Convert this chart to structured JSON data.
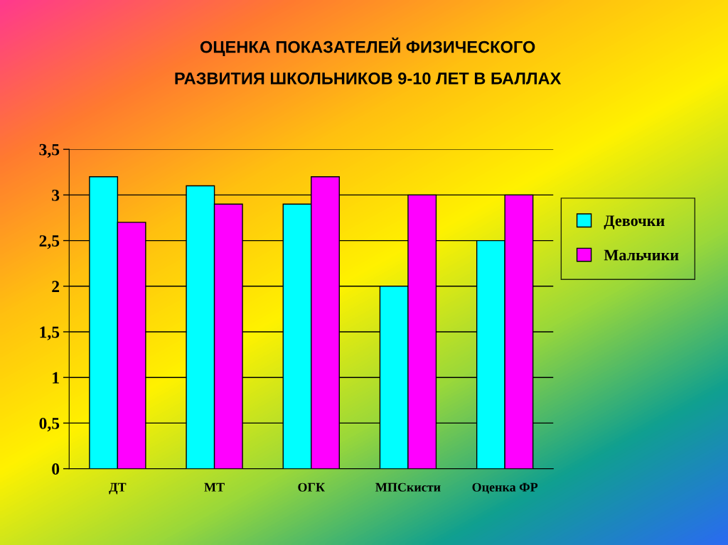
{
  "chart_data": {
    "type": "bar",
    "title": "ОЦЕНКА ПОКАЗАТЕЛЕЙ ФИЗИЧЕСКОГО\nРАЗВИТИЯ ШКОЛЬНИКОВ 9-10 ЛЕТ В БАЛЛАХ",
    "categories": [
      "ДТ",
      "МТ",
      "ОГК",
      "МПСкисти",
      "Оценка ФР"
    ],
    "series": [
      {
        "name": "Девочки",
        "color": "#00ffff",
        "values": [
          3.2,
          3.1,
          2.9,
          2.0,
          2.5
        ]
      },
      {
        "name": "Мальчики",
        "color": "#ff00ff",
        "values": [
          2.7,
          2.9,
          3.2,
          3.0,
          3.0
        ]
      }
    ],
    "ylim": [
      0,
      3.5
    ],
    "yticks": [
      0,
      {
        "value": 0.5,
        "label": "0,5"
      },
      1,
      {
        "value": 1.5,
        "label": "1,5"
      },
      2,
      {
        "value": 2.5,
        "label": "2,5"
      },
      3,
      {
        "value": 3.5,
        "label": "3,5"
      }
    ],
    "grid": "y",
    "legend": "right"
  }
}
